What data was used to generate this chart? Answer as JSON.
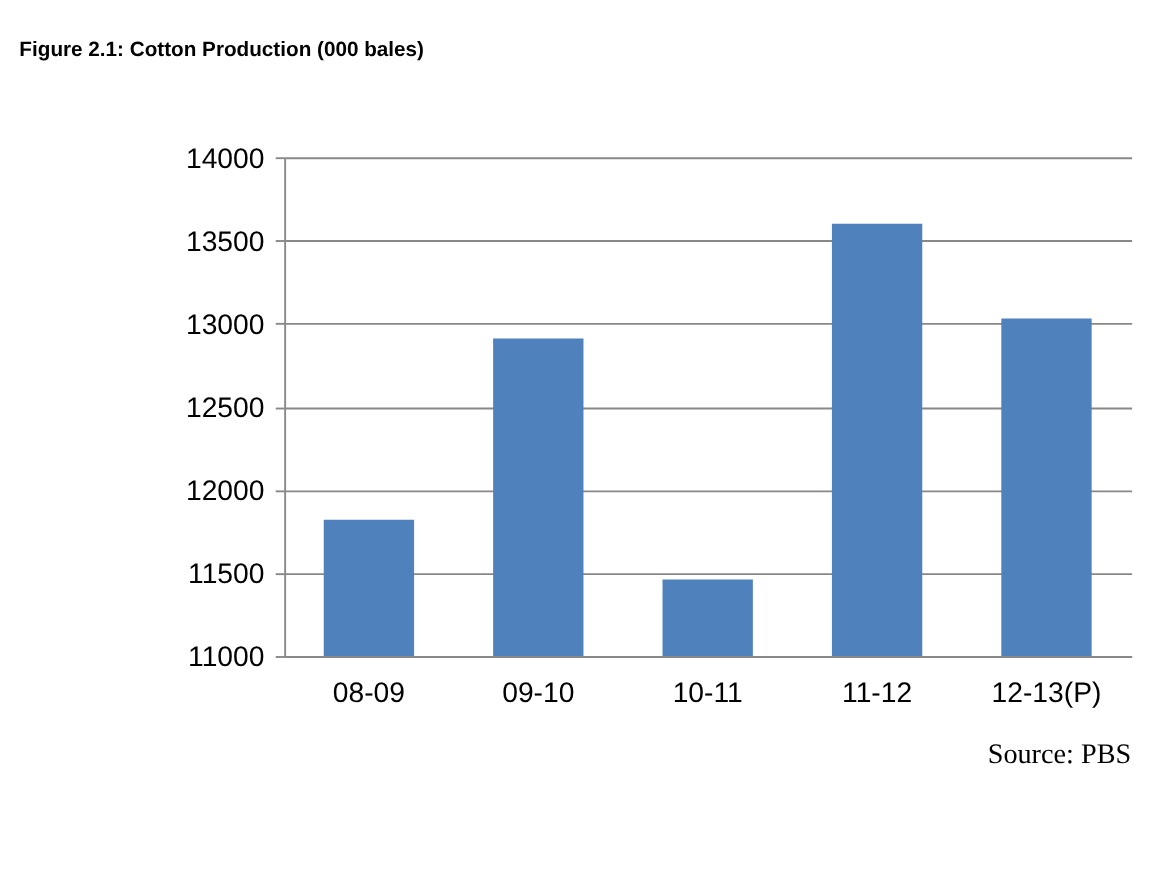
{
  "chart_data": {
    "type": "bar",
    "title": "Figure 2.1: Cotton Production (000 bales)",
    "categories": [
      "08-09",
      "09-10",
      "10-11",
      "11-12",
      "12-13(P)"
    ],
    "values": [
      11820,
      12910,
      11460,
      13600,
      13030
    ],
    "color": "#4f81bd",
    "ylim": [
      11000,
      14000
    ],
    "yticks": [
      11000,
      11500,
      12000,
      12500,
      13000,
      13500,
      14000
    ],
    "grid": "y",
    "annotations": [
      "Source: PBS"
    ]
  }
}
